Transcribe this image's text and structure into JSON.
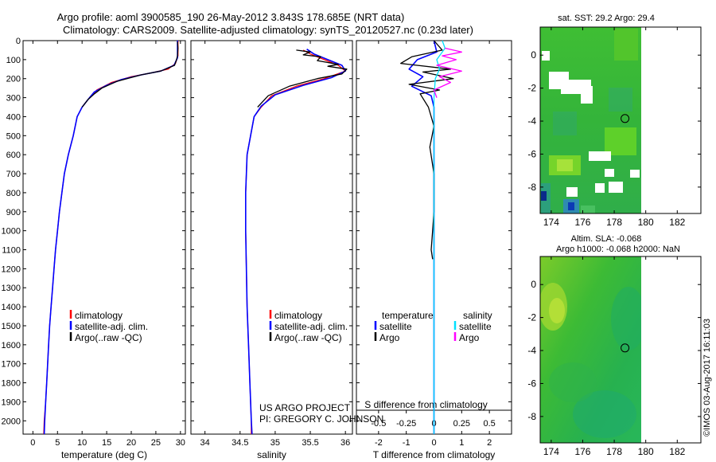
{
  "title_line1": "Argo profile: aoml 3900585_190 26-May-2012 3.843S 178.685E (NRT data)",
  "title_line2": "Climatology: CARS2009. Satellite-adjusted climatology: synTS_20120527.nc (0.23d later)",
  "right_top_title": "sat. SST: 29.2 Argo: 29.4",
  "right_bottom_title1": "Altim. SLA: -0.068",
  "right_bottom_title2": "Argo h1000: -0.068 h2000: NaN",
  "footer_project": "US ARGO PROJECT",
  "footer_pi": "PI: GREGORY C. JOHNSON",
  "credit": "©IMOS 03-Aug-2017 16:11:03",
  "colors": {
    "climatology": "#ff0000",
    "satellite": "#0000ff",
    "argo": "#000000",
    "sat_salinity": "#00e0ff",
    "argo_salinity": "#ff00ff"
  },
  "chart_data": [
    {
      "type": "line",
      "name": "temperature",
      "xlabel": "temperature (deg C)",
      "ylabel": "",
      "xlim": [
        -2,
        31
      ],
      "ylim": [
        2070,
        0
      ],
      "xticks": [
        0,
        5,
        10,
        15,
        20,
        25,
        30
      ],
      "yticks": [
        0,
        100,
        200,
        300,
        400,
        500,
        600,
        700,
        800,
        900,
        1000,
        1100,
        1200,
        1300,
        1400,
        1500,
        1600,
        1700,
        1800,
        1900,
        2000
      ],
      "legend": [
        "climatology",
        "satellite-adj. clim.",
        "Argo(..raw -QC)"
      ],
      "series": [
        {
          "name": "climatology",
          "color": "#ff0000",
          "points": [
            [
              29.5,
              0
            ],
            [
              29.5,
              80
            ],
            [
              29.0,
              120
            ],
            [
              27.5,
              150
            ],
            [
              24,
              170
            ],
            [
              20,
              190
            ],
            [
              16,
              220
            ],
            [
              13,
              260
            ],
            [
              11.5,
              300
            ],
            [
              10,
              350
            ],
            [
              9,
              400
            ],
            [
              8.2,
              500
            ],
            [
              7.2,
              600
            ],
            [
              6.4,
              700
            ],
            [
              5.9,
              800
            ],
            [
              5.4,
              900
            ],
            [
              5.0,
              1000
            ],
            [
              4.6,
              1100
            ],
            [
              4.3,
              1200
            ],
            [
              4.0,
              1300
            ],
            [
              3.7,
              1400
            ],
            [
              3.4,
              1500
            ],
            [
              3.2,
              1600
            ],
            [
              3.0,
              1700
            ],
            [
              2.8,
              1800
            ],
            [
              2.6,
              1900
            ],
            [
              2.3,
              2000
            ],
            [
              2.2,
              2070
            ]
          ]
        },
        {
          "name": "satellite-adj. clim.",
          "color": "#0000ff",
          "points": [
            [
              29.4,
              0
            ],
            [
              29.4,
              90
            ],
            [
              28.7,
              130
            ],
            [
              26,
              160
            ],
            [
              22,
              180
            ],
            [
              18,
              205
            ],
            [
              15,
              235
            ],
            [
              12.5,
              270
            ],
            [
              11.2,
              310
            ],
            [
              10,
              350
            ],
            [
              9,
              400
            ],
            [
              8.2,
              500
            ],
            [
              7.2,
              600
            ],
            [
              6.4,
              700
            ],
            [
              5.9,
              800
            ],
            [
              5.4,
              900
            ],
            [
              5.0,
              1000
            ],
            [
              4.6,
              1100
            ],
            [
              4.3,
              1200
            ],
            [
              4.0,
              1300
            ],
            [
              3.7,
              1400
            ],
            [
              3.4,
              1500
            ],
            [
              3.2,
              1600
            ],
            [
              3.0,
              1700
            ],
            [
              2.8,
              1800
            ],
            [
              2.6,
              1900
            ],
            [
              2.4,
              2000
            ],
            [
              2.3,
              2070
            ]
          ]
        },
        {
          "name": "Argo(..raw -QC)",
          "color": "#000000",
          "points": [
            [
              29.4,
              5
            ],
            [
              29.5,
              40
            ],
            [
              29.4,
              80
            ],
            [
              29.2,
              100
            ],
            [
              28.8,
              130
            ],
            [
              26,
              160
            ],
            [
              22,
              180
            ],
            [
              17,
              215
            ],
            [
              14,
              250
            ],
            [
              12.5,
              280
            ],
            [
              11.2,
              310
            ],
            [
              10,
              350
            ]
          ]
        }
      ]
    },
    {
      "type": "line",
      "name": "salinity",
      "xlabel": "salinity",
      "ylabel": "",
      "xlim": [
        33.8,
        36.1
      ],
      "ylim": [
        2070,
        0
      ],
      "xticks": [
        34,
        34.5,
        35,
        35.5,
        36
      ],
      "yticks": [
        0,
        100,
        200,
        300,
        400,
        500,
        600,
        700,
        800,
        900,
        1000,
        1100,
        1200,
        1300,
        1400,
        1500,
        1600,
        1700,
        1800,
        1900,
        2000
      ],
      "legend": [
        "climatology",
        "satellite-adj. clim.",
        "Argo(..raw -QC)"
      ],
      "series": [
        {
          "name": "climatology",
          "color": "#ff0000",
          "points": [
            [
              35.4,
              50
            ],
            [
              35.5,
              70
            ],
            [
              35.7,
              100
            ],
            [
              35.9,
              130
            ],
            [
              36.0,
              160
            ],
            [
              35.7,
              200
            ],
            [
              35.3,
              240
            ],
            [
              34.95,
              290
            ],
            [
              34.8,
              350
            ],
            [
              34.7,
              400
            ],
            [
              34.65,
              500
            ],
            [
              34.6,
              600
            ],
            [
              34.58,
              800
            ],
            [
              34.58,
              1000
            ],
            [
              34.59,
              1200
            ],
            [
              34.6,
              1400
            ],
            [
              34.62,
              1600
            ],
            [
              34.64,
              1800
            ],
            [
              34.66,
              2000
            ],
            [
              34.66,
              2070
            ]
          ]
        },
        {
          "name": "satellite-adj. clim.",
          "color": "#0000ff",
          "points": [
            [
              35.45,
              45
            ],
            [
              35.55,
              70
            ],
            [
              35.75,
              100
            ],
            [
              35.95,
              130
            ],
            [
              36.0,
              160
            ],
            [
              35.8,
              195
            ],
            [
              35.4,
              235
            ],
            [
              35.0,
              285
            ],
            [
              34.8,
              345
            ],
            [
              34.7,
              400
            ],
            [
              34.65,
              500
            ],
            [
              34.6,
              600
            ],
            [
              34.58,
              800
            ],
            [
              34.58,
              1000
            ],
            [
              34.59,
              1200
            ],
            [
              34.6,
              1400
            ],
            [
              34.62,
              1600
            ],
            [
              34.64,
              1800
            ],
            [
              34.66,
              2000
            ],
            [
              34.67,
              2070
            ]
          ]
        },
        {
          "name": "Argo(..raw -QC)",
          "color": "#000000",
          "points": [
            [
              35.3,
              50
            ],
            [
              35.5,
              60
            ],
            [
              35.4,
              75
            ],
            [
              35.65,
              85
            ],
            [
              35.6,
              105
            ],
            [
              35.9,
              125
            ],
            [
              35.75,
              135
            ],
            [
              36.02,
              150
            ],
            [
              35.95,
              175
            ],
            [
              35.6,
              200
            ],
            [
              35.2,
              240
            ],
            [
              34.9,
              290
            ],
            [
              34.75,
              350
            ]
          ]
        }
      ]
    },
    {
      "type": "line",
      "name": "difference",
      "xlabel": "T difference from climatology",
      "secondary_xlabel": "S difference from climatology",
      "ylabel": "",
      "xlim": [
        -2.8,
        2.8
      ],
      "ylim": [
        2070,
        0
      ],
      "xticks": [
        -2,
        -1,
        0,
        1,
        2
      ],
      "secondary_xticks": [
        "-0.5",
        "-0.25",
        "0",
        "0.25",
        "0.5"
      ],
      "yticks": [
        0,
        100,
        200,
        300,
        400,
        500,
        600,
        700,
        800,
        900,
        1000,
        1100,
        1200,
        1300,
        1400,
        1500,
        1600,
        1700,
        1800,
        1900,
        2000
      ],
      "legend_temperature_heading": "temperature",
      "legend_salinity_heading": "salinity",
      "legend": [
        "satellite",
        "Argo",
        "satellite",
        "Argo"
      ],
      "series": [
        {
          "name": "temperature satellite",
          "color": "#0000ff",
          "points": [
            [
              0,
              0
            ],
            [
              0.1,
              60
            ],
            [
              -0.6,
              100
            ],
            [
              -0.9,
              150
            ],
            [
              -0.4,
              190
            ],
            [
              -0.8,
              240
            ],
            [
              -0.1,
              290
            ],
            [
              0,
              350
            ],
            [
              0,
              2070
            ]
          ]
        },
        {
          "name": "temperature Argo",
          "color": "#000000",
          "points": [
            [
              0,
              0
            ],
            [
              0.3,
              50
            ],
            [
              -0.8,
              85
            ],
            [
              -1.2,
              120
            ],
            [
              0.6,
              150
            ],
            [
              -0.4,
              165
            ],
            [
              0.7,
              200
            ],
            [
              -0.9,
              230
            ],
            [
              0.2,
              260
            ],
            [
              -0.5,
              280
            ],
            [
              -0.2,
              350
            ],
            [
              0,
              450
            ],
            [
              -0.15,
              560
            ],
            [
              0,
              700
            ],
            [
              0,
              900
            ],
            [
              -0.05,
              1000
            ],
            [
              -0.1,
              1100
            ],
            [
              -0.05,
              1150
            ]
          ]
        },
        {
          "name": "salinity satellite",
          "color": "#00e0ff",
          "points": [
            [
              0.3,
              0
            ],
            [
              0.4,
              40
            ],
            [
              0.1,
              100
            ],
            [
              0.2,
              150
            ],
            [
              0.05,
              200
            ],
            [
              0,
              300
            ],
            [
              0,
              2070
            ]
          ]
        },
        {
          "name": "salinity Argo",
          "color": "#ff00ff",
          "points": [
            [
              0.4,
              40
            ],
            [
              1.0,
              60
            ],
            [
              0.3,
              80
            ],
            [
              0.8,
              100
            ],
            [
              0.1,
              130
            ],
            [
              1.0,
              160
            ],
            [
              0.2,
              190
            ],
            [
              0.6,
              220
            ],
            [
              0,
              260
            ],
            [
              0.1,
              300
            ]
          ]
        }
      ]
    },
    {
      "type": "heatmap",
      "name": "sst map",
      "title": "sat. SST: 29.2 Argo: 29.4",
      "xlim": [
        173.3,
        183.5
      ],
      "ylim": [
        -9.6,
        1.7
      ],
      "xticks": [
        174,
        176,
        178,
        180,
        182
      ],
      "yticks": [
        0,
        -2,
        -4,
        -6,
        -8
      ],
      "argo_location": [
        178.685,
        -3.843
      ]
    },
    {
      "type": "heatmap",
      "name": "sla map",
      "title": "Altim. SLA: -0.068",
      "xlim": [
        173.3,
        183.5
      ],
      "ylim": [
        -9.6,
        1.7
      ],
      "xticks": [
        174,
        176,
        178,
        180,
        182
      ],
      "yticks": [
        0,
        -2,
        -4,
        -6,
        -8
      ],
      "argo_location": [
        178.685,
        -3.843
      ]
    }
  ]
}
